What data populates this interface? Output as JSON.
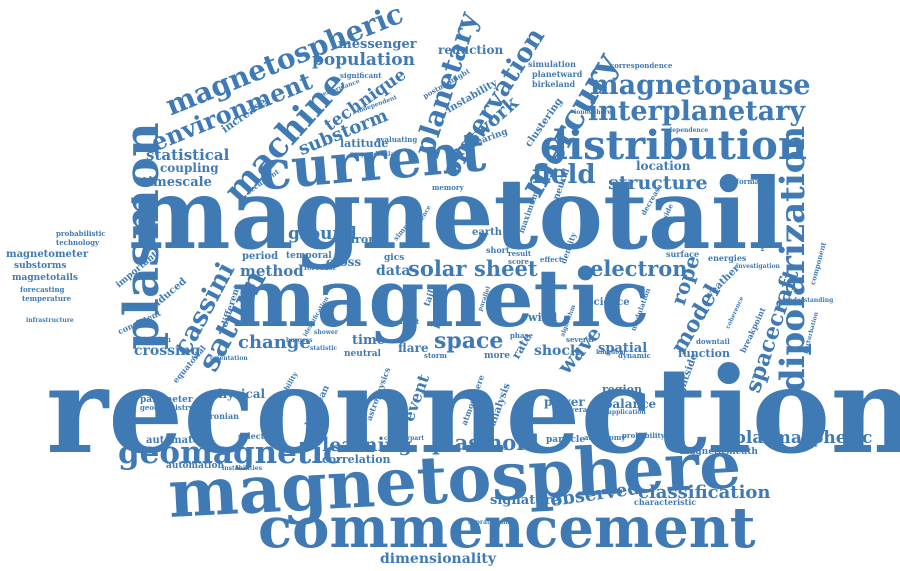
{
  "color": "#3f7ab5",
  "words": [
    "reconnection",
    "magnetotail",
    "magnetic",
    "magnetosphere",
    "commencement",
    "current",
    "plasmon",
    "distribution",
    "dipolarization",
    "mercury",
    "interplanetary",
    "magnetopause",
    "machine",
    "magnetospheric",
    "environment",
    "geomagnetic",
    "saturn",
    "cassini",
    "planetary",
    "observation",
    "field",
    "structure",
    "solar",
    "sheet",
    "space",
    "electron",
    "model",
    "spacecraft",
    "wave",
    "rope",
    "plasmoid",
    "learning",
    "classification",
    "observed",
    "plasmaspheric",
    "network",
    "substorm",
    "technique",
    "population",
    "messenger",
    "reduction",
    "statistical",
    "timescale",
    "coupling",
    "change",
    "ground",
    "method",
    "crossing",
    "event",
    "physical",
    "dimensionality",
    "signature",
    "correlation",
    "automated",
    "automation",
    "parameter",
    "geochemistry",
    "magnetometer",
    "substorms",
    "magnetotails",
    "forecasting",
    "temperature",
    "probabilistic",
    "technology",
    "infrastructure",
    "power",
    "balance",
    "region",
    "nightside",
    "function",
    "spatial",
    "shock",
    "rate",
    "flare",
    "time",
    "data",
    "cross",
    "auroral",
    "earth",
    "location",
    "latitude",
    "clustering",
    "tearing",
    "instability",
    "simulation",
    "planetward",
    "birkeland",
    "correspondence",
    "ionosphere",
    "dependence",
    "formation",
    "decrease",
    "dayside",
    "enhancement",
    "surface",
    "weather",
    "energies",
    "component",
    "investigation",
    "perturbation",
    "breakpoint",
    "understanding",
    "downtail",
    "coherence",
    "modulation",
    "science",
    "kingdom",
    "dynamic",
    "characteristic",
    "magnetosheath",
    "probability",
    "astronomy",
    "particle",
    "application",
    "average",
    "analysis",
    "atmosphere",
    "hermean",
    "kronian",
    "selection",
    "instabilities",
    "suprathermal",
    "counterpart",
    "contribution",
    "astrophysics",
    "variability",
    "consistent",
    "induced",
    "important",
    "detection",
    "equatorial",
    "orientation",
    "different",
    "period",
    "temporal",
    "forecast",
    "increase",
    "significant",
    "performance",
    "independent",
    "perpendicular",
    "evaluating",
    "recurrent",
    "memory",
    "neural",
    "maximum",
    "density",
    "result",
    "score",
    "phase",
    "several",
    "more",
    "storm",
    "most",
    "neutral",
    "gics",
    "effect",
    "wind",
    "tail",
    "line",
    "short",
    "simple",
    "evidence",
    "statistic",
    "burgess",
    "identification",
    "shower",
    "algorithm",
    "parallel",
    "postmidnight"
  ]
}
